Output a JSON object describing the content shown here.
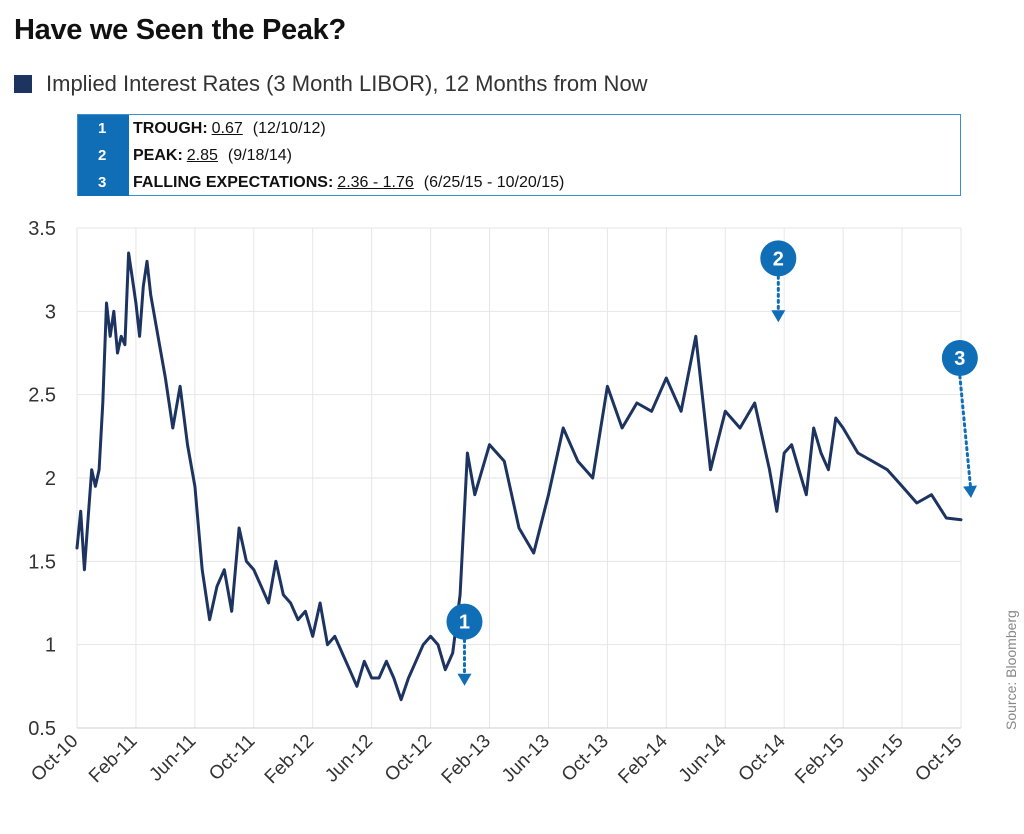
{
  "title": "Have we Seen the Peak?",
  "legend_label": "Implied Interest Rates (3 Month LIBOR), 12 Months from Now",
  "source": "Source: Bloomberg",
  "colors": {
    "series": "#1d3461",
    "accent": "#0f6eb6",
    "grid": "#e6e6e6",
    "box_border": "#3b8fd0"
  },
  "annotations": [
    {
      "number": "1",
      "label": "TROUGH:",
      "value": "0.67",
      "date": "(12/10/12)"
    },
    {
      "number": "2",
      "label": "PEAK:",
      "value": "2.85",
      "date": "(9/18/14)"
    },
    {
      "number": "3",
      "label": "FALLING EXPECTATIONS:",
      "value": "2.36 - 1.76",
      "date": "(6/25/15 - 10/20/15)"
    }
  ],
  "chart_data": {
    "type": "line",
    "x_tick_labels": [
      "Oct-10",
      "Feb-11",
      "Jun-11",
      "Oct-11",
      "Feb-12",
      "Jun-12",
      "Oct-12",
      "Feb-13",
      "Jun-13",
      "Oct-13",
      "Feb-14",
      "Jun-14",
      "Oct-14",
      "Feb-15",
      "Jun-15",
      "Oct-15"
    ],
    "y_tick_labels": [
      "0.5",
      "1",
      "1.5",
      "2",
      "2.5",
      "3",
      "3.5"
    ],
    "ylim": [
      0.5,
      3.5
    ],
    "grid": true,
    "legend_position": "top-left",
    "series": [
      {
        "name": "Implied Interest Rates (3 Month LIBOR), 12 Months from Now",
        "x_months": [
          0,
          0.25,
          0.5,
          0.75,
          1,
          1.25,
          1.5,
          1.75,
          2,
          2.25,
          2.5,
          2.75,
          3,
          3.25,
          3.5,
          3.75,
          4,
          4.25,
          4.5,
          4.75,
          5,
          5.5,
          6,
          6.5,
          7,
          7.5,
          8,
          8.5,
          9,
          9.5,
          10,
          10.5,
          11,
          11.5,
          12,
          12.5,
          13,
          13.5,
          14,
          14.5,
          15,
          15.5,
          16,
          16.5,
          17,
          17.5,
          18,
          18.5,
          19,
          19.5,
          20,
          20.5,
          21,
          21.5,
          22,
          22.5,
          23,
          23.5,
          24,
          24.5,
          25,
          25.5,
          26,
          26.5,
          27,
          28,
          29,
          30,
          31,
          32,
          33,
          34,
          35,
          36,
          37,
          38,
          39,
          40,
          41,
          42,
          43,
          44,
          45,
          46,
          47,
          47.5,
          48,
          48.5,
          49,
          49.5,
          50,
          50.5,
          51,
          51.5,
          52,
          53,
          54,
          55,
          56,
          57,
          58,
          59,
          60
        ],
        "values": [
          1.58,
          1.8,
          1.45,
          1.75,
          2.05,
          1.95,
          2.05,
          2.45,
          3.05,
          2.85,
          3.0,
          2.75,
          2.85,
          2.8,
          3.35,
          3.2,
          3.05,
          2.85,
          3.15,
          3.3,
          3.1,
          2.85,
          2.6,
          2.3,
          2.55,
          2.2,
          1.95,
          1.45,
          1.15,
          1.35,
          1.45,
          1.2,
          1.7,
          1.5,
          1.45,
          1.35,
          1.25,
          1.5,
          1.3,
          1.25,
          1.15,
          1.2,
          1.05,
          1.25,
          1.0,
          1.05,
          0.95,
          0.85,
          0.75,
          0.9,
          0.8,
          0.8,
          0.9,
          0.8,
          0.67,
          0.8,
          0.9,
          1.0,
          1.05,
          1.0,
          0.85,
          0.95,
          1.3,
          2.15,
          1.9,
          2.2,
          2.1,
          1.7,
          1.55,
          1.9,
          2.3,
          2.1,
          2.0,
          2.55,
          2.3,
          2.45,
          2.4,
          2.6,
          2.4,
          2.85,
          2.05,
          2.4,
          2.3,
          2.45,
          2.05,
          1.8,
          2.15,
          2.2,
          2.05,
          1.9,
          2.3,
          2.15,
          2.05,
          2.36,
          2.3,
          2.15,
          2.1,
          2.05,
          1.95,
          1.85,
          1.9,
          1.76,
          1.75
        ]
      }
    ],
    "markers": [
      {
        "number": "1",
        "x_month": 26.3,
        "y": 0.67
      },
      {
        "number": "2",
        "x_month": 47.6,
        "y": 2.85
      },
      {
        "number": "3",
        "x_month": 56.8,
        "y": 2.36
      }
    ]
  }
}
